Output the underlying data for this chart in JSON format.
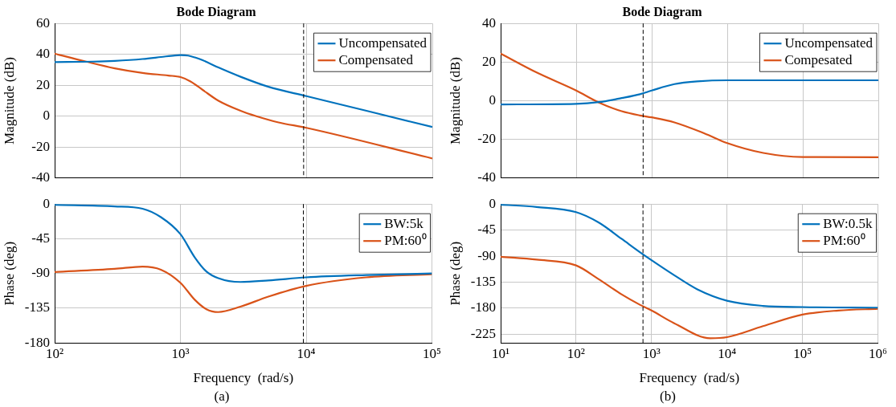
{
  "chart_data": [
    {
      "type": "line",
      "title": "Bode Diagram",
      "ylabel": "Magnitude (dB)",
      "xlim": [
        100,
        100000
      ],
      "xticks": [
        {
          "value": 100,
          "label": null
        },
        {
          "value": 1000,
          "label": null
        },
        {
          "value": 10000,
          "label": null
        },
        {
          "value": 100000,
          "label": null
        }
      ],
      "ylim": [
        -40,
        60
      ],
      "yticks": [
        -40,
        -20,
        0,
        20,
        40,
        60
      ],
      "log": "x",
      "grid": true,
      "legend": "top right",
      "tick_labels": "y",
      "line_style": "solid",
      "ref_lines": [
        {
          "axis": "x",
          "value": 9500,
          "line_style": "dashed",
          "color": "#000000"
        }
      ],
      "series": [
        {
          "name": "Uncompensated",
          "color": "#0072bd",
          "x": [
            100,
            200,
            300,
            500,
            700,
            900,
            1000,
            1150,
            1300,
            1500,
            2000,
            3000,
            5000,
            10000,
            30000,
            100000
          ],
          "values": [
            35,
            35.3,
            35.8,
            37,
            38.3,
            39.3,
            39.5,
            39.2,
            38,
            36.2,
            31.5,
            25.5,
            19,
            13,
            3.5,
            -7
          ]
        },
        {
          "name": "Compensated",
          "color": "#d95319",
          "x": [
            100,
            178,
            300,
            500,
            800,
            1000,
            1200,
            1500,
            2000,
            3000,
            4000,
            6000,
            10000,
            100000
          ],
          "values": [
            40.5,
            35.3,
            31,
            28,
            26.3,
            25.3,
            22.5,
            17,
            10,
            3.5,
            0,
            -4,
            -7.5,
            -27.3
          ]
        }
      ]
    },
    {
      "type": "line",
      "xlabel": "Frequency  (rad/s)",
      "ylabel": "Phase (deg)",
      "annotations": [
        "(a)"
      ],
      "xlim": [
        100,
        100000
      ],
      "xticks": [
        {
          "value": 100,
          "label": "10²"
        },
        {
          "value": 1000,
          "label": "10³"
        },
        {
          "value": 10000,
          "label": "10⁴"
        },
        {
          "value": 100000,
          "label": "10⁵"
        }
      ],
      "ylim": [
        -180,
        0
      ],
      "yticks": [
        -180,
        -135,
        -90,
        -45,
        0
      ],
      "log": "x",
      "grid": true,
      "legend": "top right",
      "line_style": "solid",
      "ref_lines": [
        {
          "axis": "x",
          "value": 9500,
          "line_style": "dashed",
          "color": "#000000"
        }
      ],
      "series": [
        {
          "name": "BW:5k",
          "color": "#0072bd",
          "x": [
            100,
            300,
            500,
            700,
            1000,
            1300,
            1600,
            2000,
            3000,
            5000,
            10000,
            30000,
            100000
          ],
          "values": [
            -1,
            -3,
            -6,
            -17,
            -39,
            -69,
            -87,
            -96,
            -101,
            -99,
            -95,
            -92,
            -90
          ]
        },
        {
          "name": "PM:60⁰",
          "color": "#d95319",
          "x": [
            100,
            300,
            500,
            700,
            1000,
            1300,
            1600,
            2000,
            3000,
            5000,
            10000,
            30000,
            100000
          ],
          "values": [
            -88,
            -84,
            -81,
            -85,
            -102,
            -124,
            -136,
            -140,
            -133,
            -120,
            -106,
            -95,
            -91
          ]
        }
      ]
    },
    {
      "type": "line",
      "title": "Bode Diagram",
      "ylabel": "Magnitude (dB)",
      "xlim": [
        10,
        1000000
      ],
      "xticks": [
        {
          "value": 10,
          "label": null
        },
        {
          "value": 100,
          "label": null
        },
        {
          "value": 1000,
          "label": null
        },
        {
          "value": 10000,
          "label": null
        },
        {
          "value": 100000,
          "label": null
        },
        {
          "value": 1000000,
          "label": null
        }
      ],
      "ylim": [
        -40,
        40
      ],
      "yticks": [
        -40,
        -20,
        0,
        20,
        40
      ],
      "log": "x",
      "grid": true,
      "legend": "top right",
      "tick_labels": "y",
      "line_style": "solid",
      "ref_lines": [
        {
          "axis": "x",
          "value": 770,
          "line_style": "dashed",
          "color": "#000000"
        }
      ],
      "series": [
        {
          "name": "Uncompensated",
          "color": "#0072bd",
          "x": [
            10,
            100,
            200,
            400,
            700,
            1000,
            2000,
            4000,
            10000,
            1000000
          ],
          "values": [
            -1.9,
            -1.6,
            -0.7,
            1.4,
            3.4,
            5.3,
            8.6,
            10,
            10.6,
            10.6
          ]
        },
        {
          "name": "Compesated",
          "color": "#d95319",
          "x": [
            10,
            30,
            100,
            200,
            400,
            700,
            1000,
            2000,
            5000,
            10000,
            30000,
            100000,
            1000000
          ],
          "values": [
            24.4,
            14.6,
            5.3,
            -0.9,
            -5.4,
            -7.6,
            -8.6,
            -11.2,
            -16.9,
            -21.9,
            -27,
            -29.1,
            -29.2
          ]
        }
      ]
    },
    {
      "type": "line",
      "xlabel": "Frequency  (rad/s)",
      "ylabel": "Phase (deg)",
      "annotations": [
        "(b)"
      ],
      "xlim": [
        10,
        1000000
      ],
      "xticks": [
        {
          "value": 10,
          "label": "10¹"
        },
        {
          "value": 100,
          "label": "10²"
        },
        {
          "value": 1000,
          "label": "10³"
        },
        {
          "value": 10000,
          "label": "10⁴"
        },
        {
          "value": 100000,
          "label": "10⁵"
        },
        {
          "value": 1000000,
          "label": "10⁶"
        }
      ],
      "ylim": [
        -240,
        0
      ],
      "yticks": [
        -225,
        -180,
        -135,
        -90,
        -45,
        0
      ],
      "log": "x",
      "grid": true,
      "legend": "top right",
      "line_style": "solid",
      "ref_lines": [
        {
          "axis": "x",
          "value": 770,
          "line_style": "dashed",
          "color": "#000000"
        }
      ],
      "series": [
        {
          "name": "BW:0.5k",
          "color": "#0072bd",
          "x": [
            10,
            30,
            100,
            200,
            400,
            700,
            1000,
            2000,
            4000,
            10000,
            30000,
            100000,
            1000000
          ],
          "values": [
            -1,
            -5,
            -14,
            -32,
            -60,
            -83,
            -97,
            -123,
            -147,
            -167,
            -176,
            -178,
            -179
          ]
        },
        {
          "name": "PM:60⁰",
          "color": "#d95319",
          "x": [
            10,
            30,
            100,
            200,
            400,
            700,
            1000,
            2000,
            6000,
            10000,
            30000,
            100000,
            300000,
            1000000
          ],
          "values": [
            -91,
            -96,
            -106,
            -130,
            -156,
            -174,
            -184,
            -206,
            -232,
            -230,
            -211,
            -191,
            -184,
            -181
          ]
        }
      ]
    }
  ]
}
